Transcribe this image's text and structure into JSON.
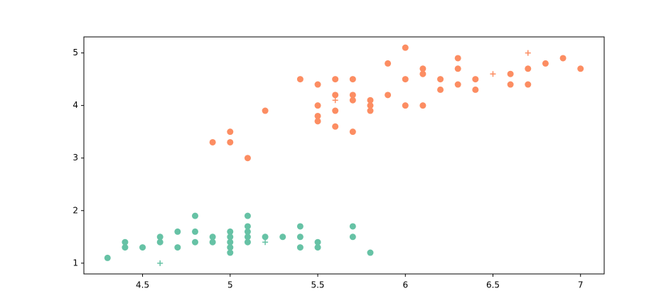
{
  "chart_data": {
    "type": "scatter",
    "xlim": [
      4.165,
      7.135
    ],
    "ylim": [
      0.795,
      5.305
    ],
    "xticks": [
      4.5,
      5.0,
      5.5,
      6.0,
      6.5,
      7.0
    ],
    "yticks": [
      1,
      2,
      3,
      4,
      5
    ],
    "series": [
      {
        "color": "#66c2a5",
        "marker": "circle",
        "x": [
          4.3,
          4.4,
          4.4,
          4.5,
          4.6,
          4.6,
          4.7,
          4.7,
          4.8,
          4.8,
          4.8,
          4.9,
          4.9,
          5.0,
          5.0,
          5.0,
          5.0,
          5.0,
          5.1,
          5.1,
          5.1,
          5.1,
          5.1,
          5.2,
          5.3,
          5.4,
          5.4,
          5.4,
          5.5,
          5.5,
          5.7,
          5.7,
          5.8
        ],
        "y": [
          1.1,
          1.3,
          1.4,
          1.3,
          1.4,
          1.5,
          1.3,
          1.6,
          1.4,
          1.6,
          1.9,
          1.4,
          1.5,
          1.2,
          1.3,
          1.4,
          1.5,
          1.6,
          1.4,
          1.5,
          1.6,
          1.7,
          1.9,
          1.5,
          1.5,
          1.3,
          1.5,
          1.7,
          1.3,
          1.4,
          1.5,
          1.7,
          1.2
        ]
      },
      {
        "color": "#fc8d62",
        "marker": "circle",
        "x": [
          4.9,
          5.0,
          5.0,
          5.1,
          5.2,
          5.4,
          5.5,
          5.5,
          5.5,
          5.5,
          5.6,
          5.6,
          5.6,
          5.6,
          5.7,
          5.7,
          5.7,
          5.7,
          5.8,
          5.8,
          5.8,
          5.9,
          5.9,
          6.0,
          6.0,
          6.0,
          6.1,
          6.1,
          6.1,
          6.2,
          6.2,
          6.3,
          6.3,
          6.3,
          6.4,
          6.4,
          6.6,
          6.6,
          6.7,
          6.7,
          6.8,
          6.9,
          7.0
        ],
        "y": [
          3.3,
          3.3,
          3.5,
          3.0,
          3.9,
          4.5,
          3.7,
          3.8,
          4.0,
          4.4,
          3.6,
          3.9,
          4.2,
          4.5,
          3.5,
          4.1,
          4.2,
          4.5,
          3.9,
          4.0,
          4.1,
          4.2,
          4.8,
          4.0,
          4.5,
          5.1,
          4.0,
          4.6,
          4.7,
          4.3,
          4.5,
          4.4,
          4.7,
          4.9,
          4.3,
          4.5,
          4.4,
          4.6,
          4.4,
          4.7,
          4.8,
          4.9,
          4.7
        ]
      },
      {
        "color": "#66c2a5",
        "marker": "plus",
        "x": [
          4.6,
          5.2
        ],
        "y": [
          1.0,
          1.4
        ]
      },
      {
        "color": "#fc8d62",
        "marker": "plus",
        "x": [
          5.6,
          6.5,
          6.7
        ],
        "y": [
          4.1,
          4.6,
          5.0
        ]
      }
    ]
  }
}
